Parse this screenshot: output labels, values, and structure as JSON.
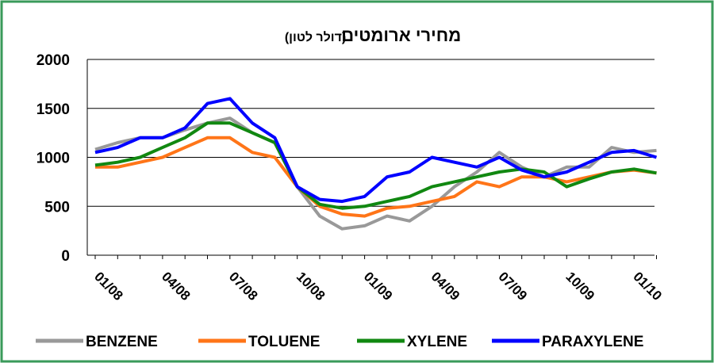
{
  "chart_data": {
    "type": "line",
    "title": "מחירי ארומטים",
    "subtitle": "(דולר לטון)",
    "categories": [
      "01/08",
      null,
      null,
      "04/08",
      null,
      null,
      "07/08",
      null,
      null,
      "10/08",
      null,
      null,
      "01/09",
      null,
      null,
      "04/09",
      null,
      null,
      "07/09",
      null,
      null,
      "10/09",
      null,
      null,
      "01/10",
      null
    ],
    "series": [
      {
        "name": "BENZENE",
        "color": "#999999",
        "values": [
          1080,
          1150,
          1200,
          1200,
          1280,
          1350,
          1400,
          1250,
          1150,
          700,
          400,
          270,
          300,
          400,
          350,
          500,
          700,
          850,
          1050,
          900,
          800,
          900,
          900,
          1100,
          1050,
          1070
        ]
      },
      {
        "name": "TOLUENE",
        "color": "#ff7518",
        "values": [
          900,
          900,
          950,
          1000,
          1100,
          1200,
          1200,
          1050,
          1000,
          700,
          500,
          420,
          400,
          480,
          500,
          550,
          600,
          750,
          700,
          800,
          800,
          750,
          800,
          850,
          870,
          840
        ]
      },
      {
        "name": "XYLENE",
        "color": "#118811",
        "values": [
          920,
          950,
          1000,
          1100,
          1200,
          1350,
          1350,
          1250,
          1150,
          700,
          520,
          480,
          500,
          550,
          600,
          700,
          750,
          800,
          850,
          880,
          850,
          700,
          780,
          850,
          880,
          840
        ]
      },
      {
        "name": "PARAXYLENE",
        "color": "#0000ff",
        "values": [
          1050,
          1100,
          1200,
          1200,
          1300,
          1550,
          1600,
          1350,
          1200,
          700,
          570,
          550,
          600,
          800,
          850,
          1000,
          950,
          900,
          1000,
          870,
          800,
          850,
          950,
          1050,
          1070,
          1000
        ]
      }
    ],
    "ylim": [
      0,
      2000
    ],
    "yticks": [
      0,
      500,
      1000,
      1500,
      2000
    ],
    "grid": true
  }
}
